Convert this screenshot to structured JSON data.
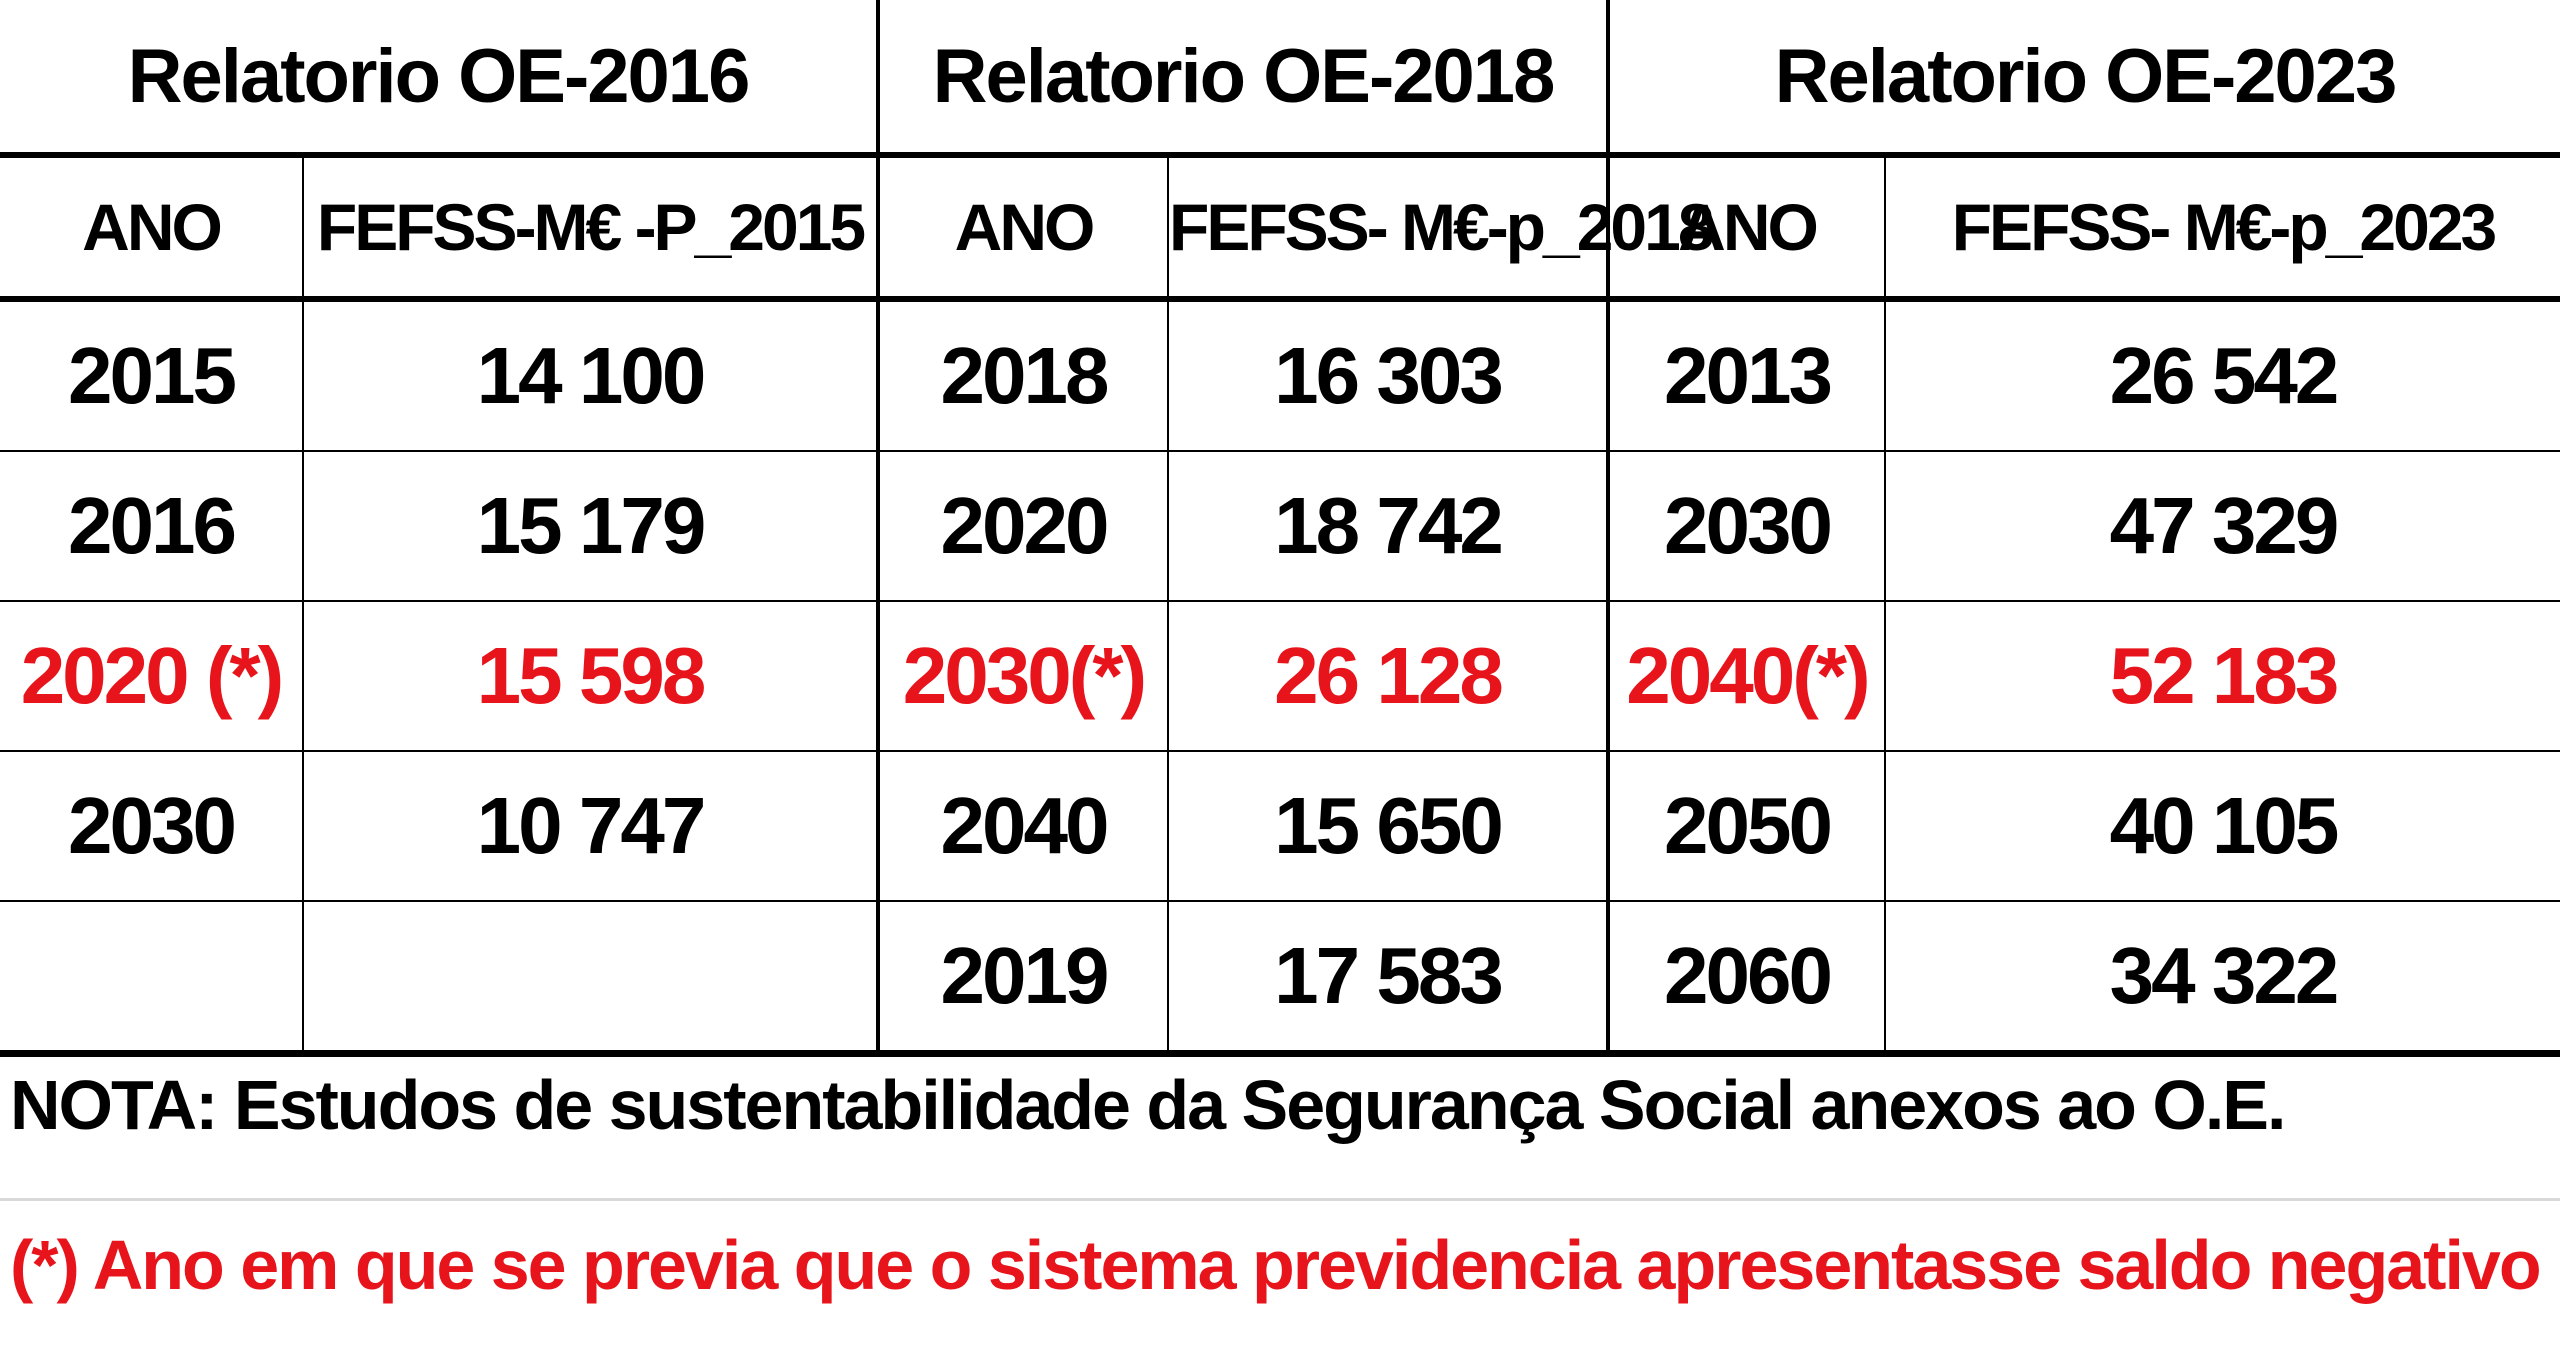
{
  "groups": [
    {
      "title": "Relatorio OE-2016",
      "col_ano": "ANO",
      "col_value": "FEFSS-M€ -P_2015"
    },
    {
      "title": "Relatorio OE-2018",
      "col_ano": "ANO",
      "col_value": "FEFSS- M€-p_2018"
    },
    {
      "title": "Relatorio OE-2023",
      "col_ano": "ANO",
      "col_value": "FEFSS- M€-p_2023"
    }
  ],
  "rows": [
    {
      "g1_ano": "2015",
      "g1_val": "14 100",
      "g2_ano": "2018",
      "g2_val": "16 303",
      "g3_ano": "2013",
      "g3_val": "26 542"
    },
    {
      "g1_ano": "2016",
      "g1_val": "15 179",
      "g2_ano": "2020",
      "g2_val": "18 742",
      "g3_ano": "2030",
      "g3_val": "47 329"
    },
    {
      "g1_ano": "2020 (*)",
      "g1_val": "15 598",
      "g2_ano": "2030(*)",
      "g2_val": "26 128",
      "g3_ano": "2040(*)",
      "g3_val": "52 183"
    },
    {
      "g1_ano": "2030",
      "g1_val": "10 747",
      "g2_ano": "2040",
      "g2_val": "15 650",
      "g3_ano": "2050",
      "g3_val": "40 105"
    },
    {
      "g1_ano": "",
      "g1_val": "",
      "g2_ano": "2019",
      "g2_val": "17 583",
      "g3_ano": "2060",
      "g3_val": "34 322"
    }
  ],
  "highlight_color": "#e8141b",
  "note": "NOTA: Estudos de sustentabilidade da Segurança Social anexos ao O.E.",
  "footnote": "(*) Ano em que se previa que o sistema previdencia apresentasse saldo negativo"
}
